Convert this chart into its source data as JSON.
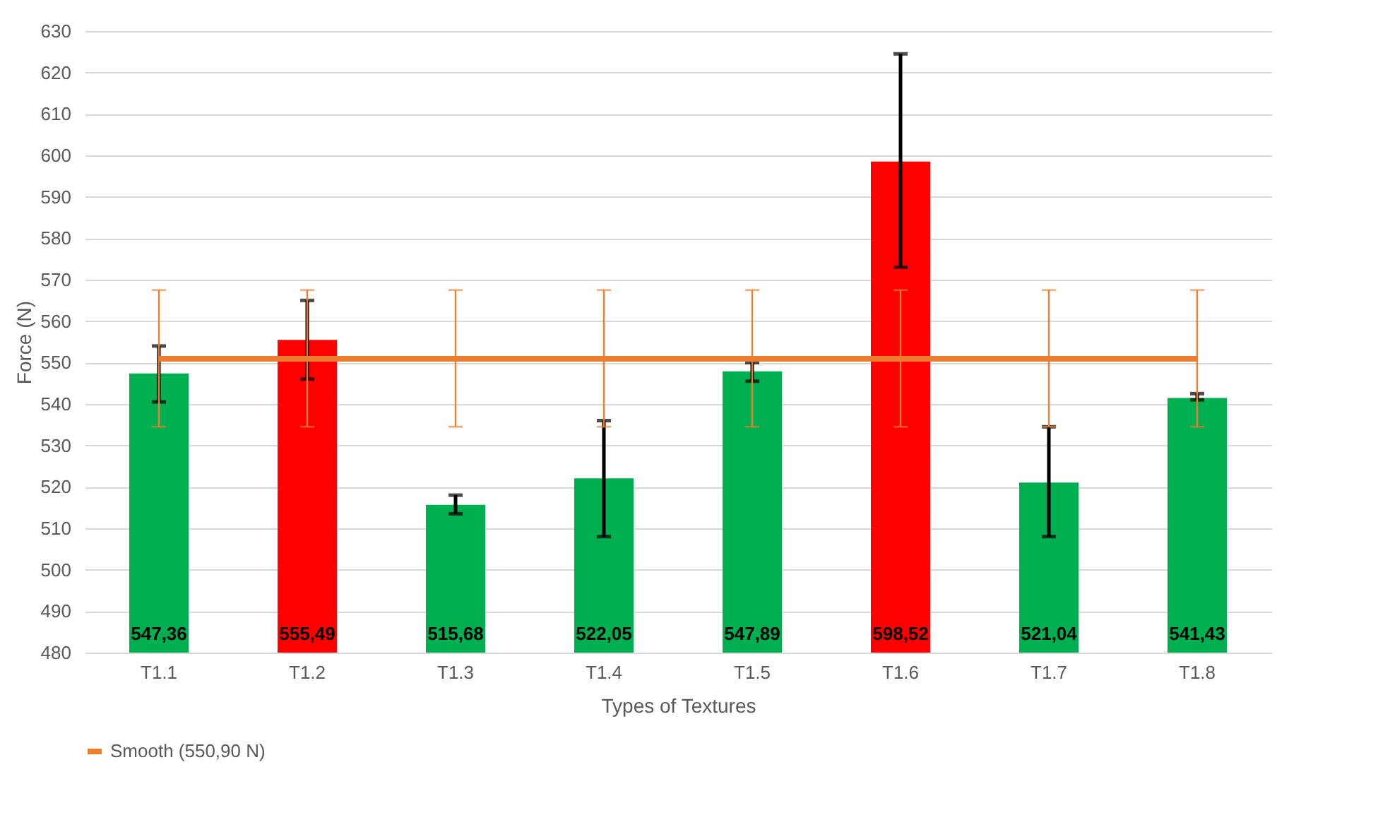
{
  "chart_data": {
    "type": "bar",
    "xlabel": "Types of Textures",
    "ylabel": "Force (N)",
    "categories": [
      "T1.1",
      "T1.2",
      "T1.3",
      "T1.4",
      "T1.5",
      "T1.6",
      "T1.7",
      "T1.8"
    ],
    "series": [
      {
        "values": [
          547.36,
          555.49,
          515.68,
          522.05,
          547.89,
          598.52,
          521.04,
          541.43
        ],
        "colors": [
          "#00b050",
          "#ff0000",
          "#00b050",
          "#00b050",
          "#00b050",
          "#ff0000",
          "#00b050",
          "#00b050"
        ],
        "value_labels": [
          "547,36",
          "555,49",
          "515,68",
          "522,05",
          "547,89",
          "598,52",
          "521,04",
          "541,43"
        ],
        "errors": [
          [
            540.5,
            554
          ],
          [
            546,
            565
          ],
          [
            513.5,
            518
          ],
          [
            508,
            536
          ],
          [
            545.5,
            550
          ],
          [
            573,
            624.5
          ],
          [
            508,
            534.5
          ],
          [
            541,
            542.5
          ]
        ]
      },
      {
        "type": "line",
        "name": "Smooth (550,90 N)",
        "color": "#ed7d31",
        "values": [
          550.9,
          550.9,
          550.9,
          550.9,
          550.9,
          550.9,
          550.9,
          550.9
        ],
        "errors": [
          [
            534.5,
            567.5
          ],
          [
            534.5,
            567.5
          ],
          [
            534.5,
            567.5
          ],
          [
            534.5,
            567.5
          ],
          [
            534.5,
            567.5
          ],
          [
            534.5,
            567.5
          ],
          [
            534.5,
            567.5
          ],
          [
            534.5,
            567.5
          ]
        ],
        "marker": "none",
        "line_style": "solid"
      }
    ],
    "ylim": [
      480,
      630
    ],
    "yticks": [
      480,
      490,
      500,
      510,
      520,
      530,
      540,
      550,
      560,
      570,
      580,
      590,
      600,
      610,
      620,
      630
    ],
    "grid": "y",
    "legend": "bottom"
  }
}
